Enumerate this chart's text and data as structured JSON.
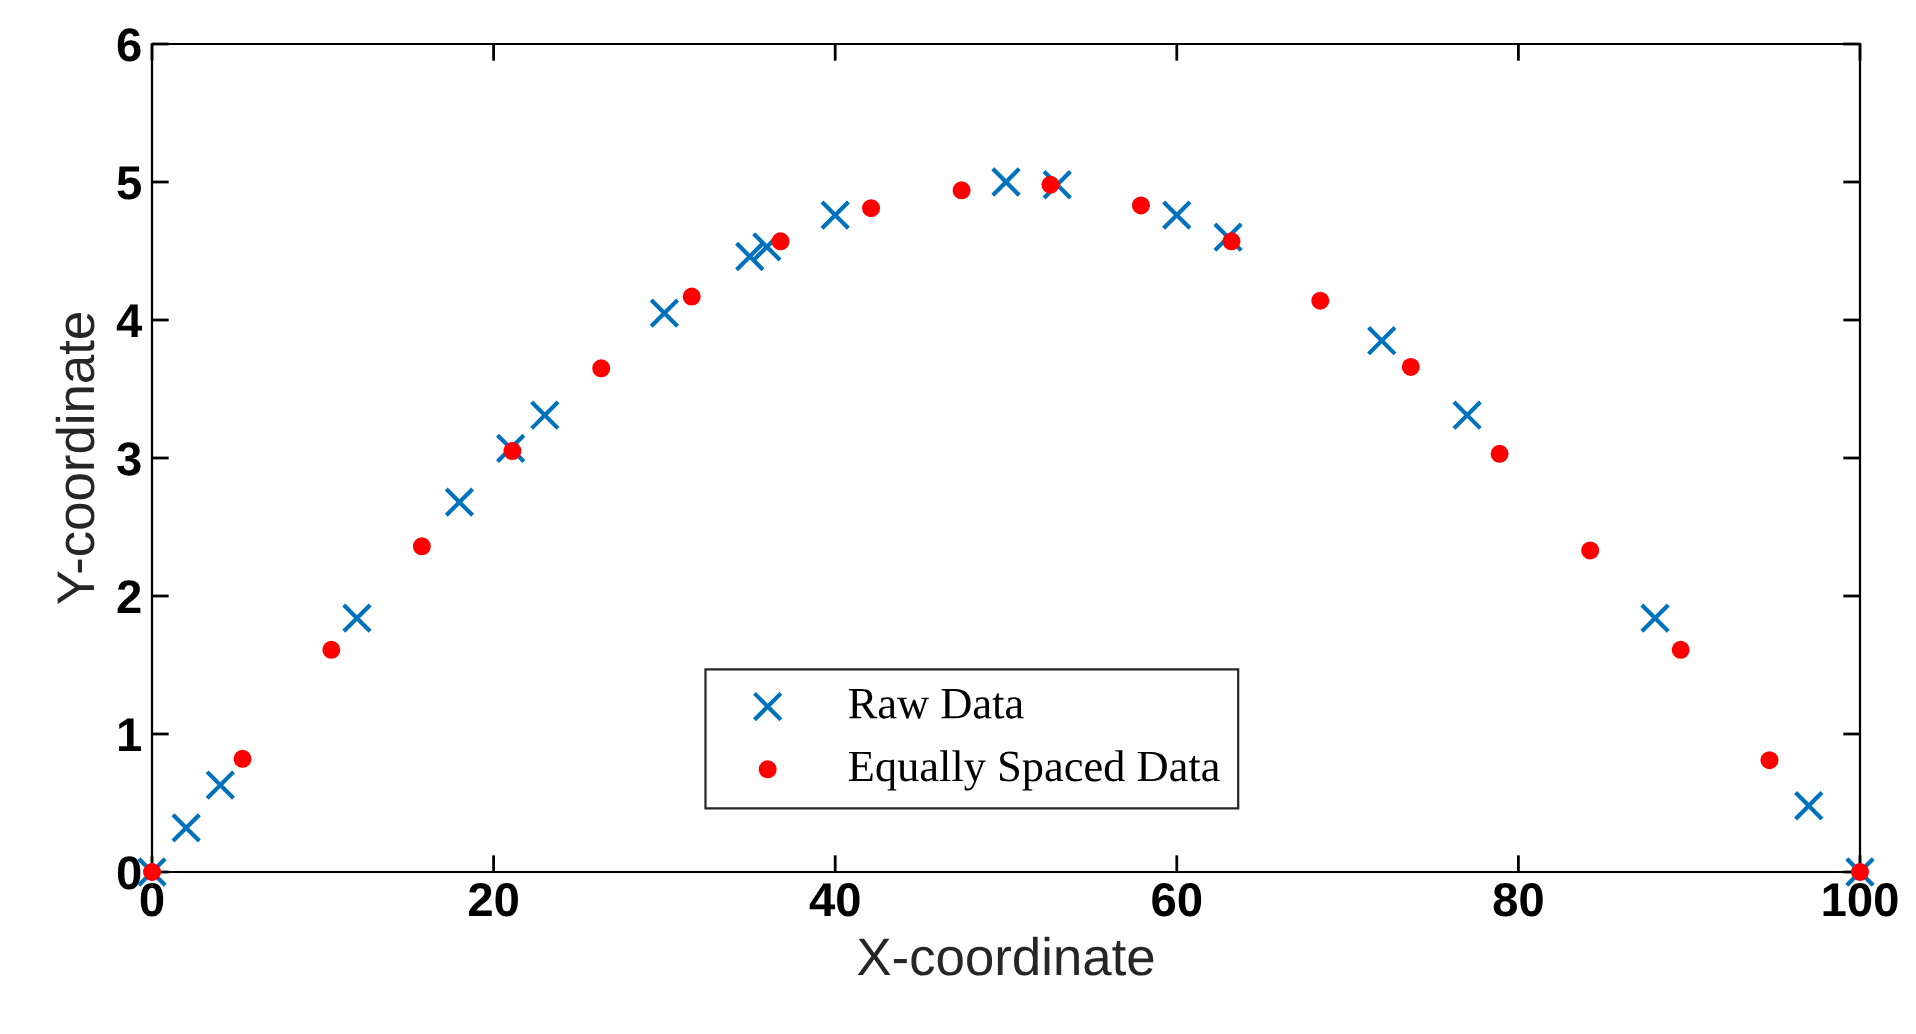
{
  "chart_data": {
    "type": "scatter",
    "xlabel": "X-coordinate",
    "ylabel": "Y-coordinate",
    "xlim": [
      0,
      100
    ],
    "ylim": [
      0,
      6
    ],
    "xticks": [
      0,
      20,
      40,
      60,
      80,
      100
    ],
    "yticks": [
      0,
      1,
      2,
      3,
      4,
      5,
      6
    ],
    "grid": false,
    "legend": "bottom",
    "series": [
      {
        "name": "Raw Data",
        "color": "#0072bd",
        "marker": "cross",
        "x": [
          0,
          2,
          4,
          12,
          18,
          21,
          23,
          30,
          35,
          36,
          40,
          50,
          53,
          60,
          63,
          72,
          77,
          88,
          97,
          100
        ],
        "values": [
          0,
          0.32,
          0.63,
          1.84,
          2.68,
          3.07,
          3.31,
          4.05,
          4.46,
          4.53,
          4.76,
          5.0,
          4.98,
          4.76,
          4.6,
          3.85,
          3.31,
          1.84,
          0.48,
          0
        ]
      },
      {
        "name": "Equally Spaced Data",
        "color": "#ff0000",
        "marker": "circle",
        "x": [
          0,
          5.3,
          10.5,
          15.8,
          21.1,
          26.3,
          31.6,
          36.8,
          42.1,
          47.4,
          52.6,
          57.9,
          63.2,
          68.4,
          73.7,
          78.9,
          84.2,
          89.5,
          94.7,
          100
        ],
        "values": [
          0,
          0.82,
          1.61,
          2.36,
          3.05,
          3.65,
          4.17,
          4.57,
          4.81,
          4.94,
          4.98,
          4.83,
          4.57,
          4.14,
          3.66,
          3.03,
          2.33,
          1.61,
          0.81,
          0
        ]
      }
    ]
  }
}
